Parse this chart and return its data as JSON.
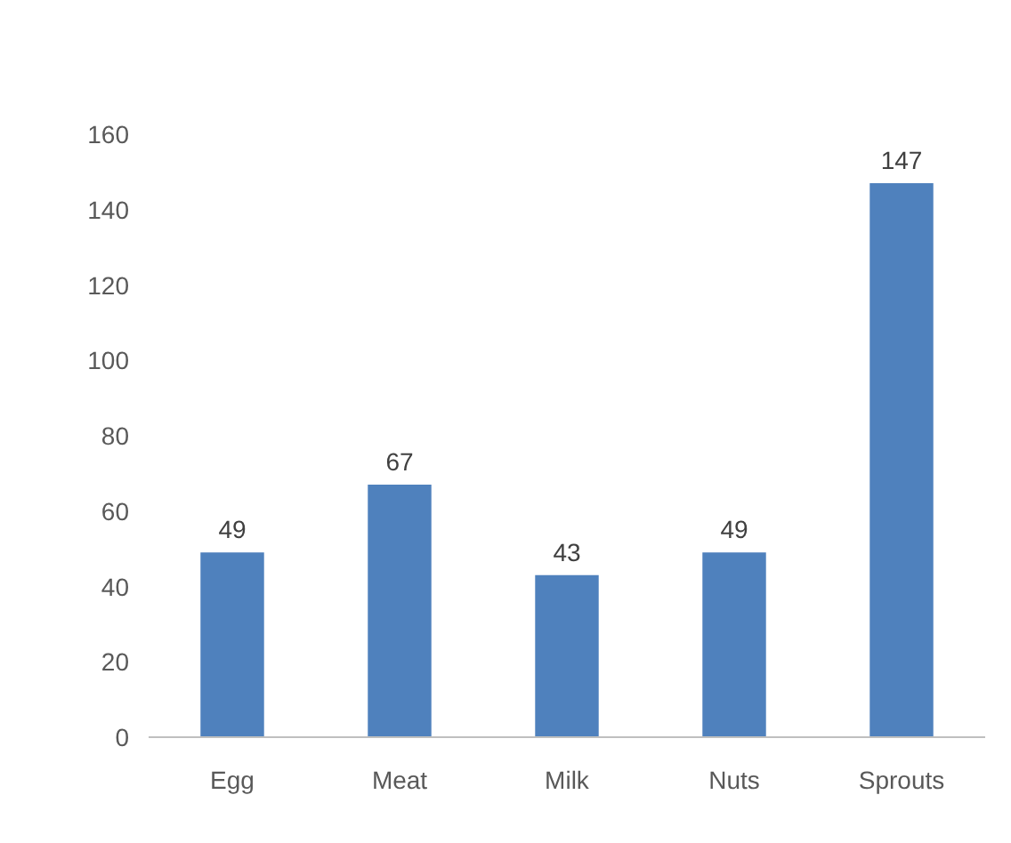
{
  "chart_data": {
    "type": "bar",
    "categories": [
      "Egg",
      "Meat",
      "Milk",
      "Nuts",
      "Sprouts"
    ],
    "values": [
      49,
      67,
      43,
      49,
      147
    ],
    "color": "#4f81bd",
    "ylim": [
      0,
      160
    ],
    "yticks": [
      0,
      20,
      40,
      60,
      80,
      100,
      120,
      140,
      160
    ],
    "grid": false,
    "data_labels": true
  }
}
